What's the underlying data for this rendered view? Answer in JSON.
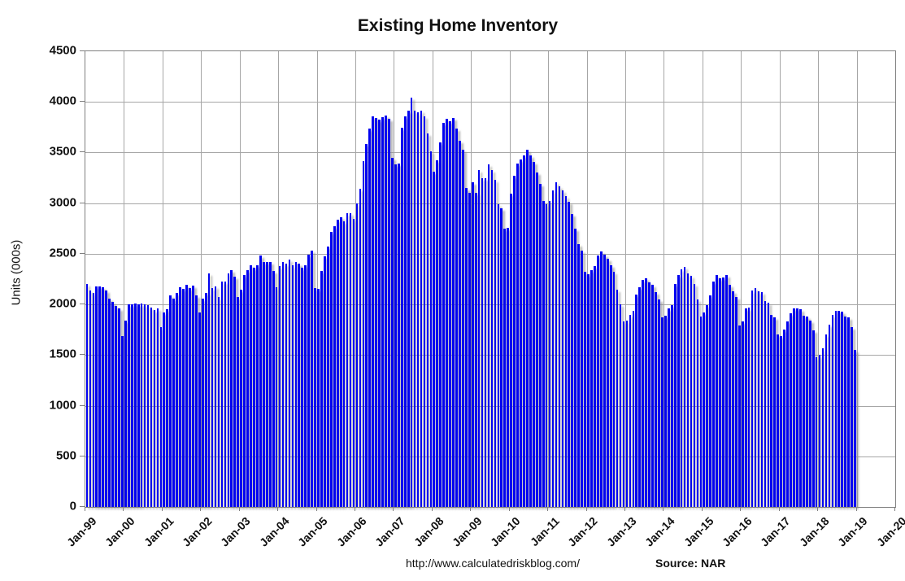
{
  "title": "Existing Home Inventory",
  "y_axis": {
    "label": "Units (000s)",
    "ticks": [
      0,
      500,
      1000,
      1500,
      2000,
      2500,
      3000,
      3500,
      4000,
      4500
    ]
  },
  "x_axis": {
    "tick_labels": [
      "Jan-99",
      "Jan-00",
      "Jan-01",
      "Jan-02",
      "Jan-03",
      "Jan-04",
      "Jan-05",
      "Jan-06",
      "Jan-07",
      "Jan-08",
      "Jan-09",
      "Jan-10",
      "Jan-11",
      "Jan-12",
      "Jan-13",
      "Jan-14",
      "Jan-15",
      "Jan-16",
      "Jan-17",
      "Jan-18",
      "Jan-19",
      "Jan-20"
    ]
  },
  "footer": {
    "url": "http://www.calculatedriskblog.com/",
    "source": "Source: NAR"
  },
  "colors": {
    "bar": "#0202f0",
    "grid": "#a6a6a6",
    "axis": "#808080",
    "text": "#111111"
  },
  "chart_data": {
    "type": "bar",
    "title": "Existing Home Inventory",
    "xlabel": "",
    "ylabel": "Units (000s)",
    "ylim": [
      0,
      4500
    ],
    "y_tick_interval": 500,
    "grid": true,
    "legend": false,
    "frequency": "monthly",
    "x_start": "Jan-1999",
    "x_end": "Dec-2018",
    "series_name": "Existing home inventory (thousands, NSA)",
    "years": [
      {
        "year": 1999,
        "values": [
          2200,
          2140,
          2110,
          2175,
          2175,
          2170,
          2140,
          2060,
          2025,
          1985,
          1960,
          1690
        ]
      },
      {
        "year": 2000,
        "values": [
          1840,
          2000,
          2005,
          2010,
          2005,
          2010,
          2000,
          1990,
          1965,
          1945,
          1960,
          1780
        ]
      },
      {
        "year": 2001,
        "values": [
          1920,
          1955,
          2090,
          2055,
          2115,
          2170,
          2150,
          2190,
          2165,
          2185,
          2090,
          1920
        ]
      },
      {
        "year": 2002,
        "values": [
          2060,
          2115,
          2310,
          2165,
          2180,
          2075,
          2230,
          2225,
          2305,
          2335,
          2275,
          2075
        ]
      },
      {
        "year": 2003,
        "values": [
          2145,
          2290,
          2335,
          2385,
          2360,
          2385,
          2480,
          2415,
          2420,
          2420,
          2330,
          2170
        ]
      },
      {
        "year": 2004,
        "values": [
          2375,
          2420,
          2400,
          2440,
          2385,
          2415,
          2400,
          2360,
          2385,
          2495,
          2530,
          2160
        ]
      },
      {
        "year": 2005,
        "values": [
          2155,
          2330,
          2475,
          2570,
          2715,
          2770,
          2835,
          2860,
          2820,
          2900,
          2905,
          2845
        ]
      },
      {
        "year": 2006,
        "values": [
          2995,
          3140,
          3415,
          3585,
          3735,
          3860,
          3845,
          3825,
          3850,
          3865,
          3835,
          3450
        ]
      },
      {
        "year": 2007,
        "values": [
          3380,
          3390,
          3745,
          3855,
          3910,
          4040,
          3910,
          3900,
          3915,
          3860,
          3690,
          3510
        ]
      },
      {
        "year": 2008,
        "values": [
          3310,
          3420,
          3600,
          3790,
          3830,
          3810,
          3840,
          3740,
          3615,
          3525,
          3150,
          3100
        ]
      },
      {
        "year": 2009,
        "values": [
          3210,
          3105,
          3325,
          3250,
          3245,
          3385,
          3325,
          3230,
          2990,
          2950,
          2750,
          2755
        ]
      },
      {
        "year": 2010,
        "values": [
          3095,
          3270,
          3395,
          3430,
          3470,
          3530,
          3470,
          3410,
          3305,
          3190,
          3020,
          2990
        ]
      },
      {
        "year": 2011,
        "values": [
          3020,
          3130,
          3205,
          3165,
          3130,
          3070,
          3010,
          2895,
          2750,
          2595,
          2530,
          2320
        ]
      },
      {
        "year": 2012,
        "values": [
          2295,
          2340,
          2375,
          2480,
          2520,
          2495,
          2455,
          2385,
          2320,
          2145,
          2000,
          1835
        ]
      },
      {
        "year": 2013,
        "values": [
          1840,
          1900,
          1940,
          2100,
          2170,
          2240,
          2260,
          2220,
          2190,
          2120,
          2050,
          1870
        ]
      },
      {
        "year": 2014,
        "values": [
          1890,
          1960,
          1990,
          2200,
          2290,
          2350,
          2370,
          2310,
          2280,
          2200,
          2050,
          1880
        ]
      },
      {
        "year": 2015,
        "values": [
          1920,
          1990,
          2090,
          2230,
          2290,
          2260,
          2270,
          2290,
          2190,
          2130,
          2070,
          1790
        ]
      },
      {
        "year": 2016,
        "values": [
          1830,
          1960,
          1970,
          2140,
          2160,
          2130,
          2120,
          2030,
          2020,
          1900,
          1870,
          1700
        ]
      },
      {
        "year": 2017,
        "values": [
          1690,
          1755,
          1830,
          1910,
          1960,
          1960,
          1950,
          1890,
          1880,
          1840,
          1740,
          1480
        ]
      },
      {
        "year": 2018,
        "values": [
          1500,
          1570,
          1700,
          1800,
          1900,
          1940,
          1940,
          1930,
          1880,
          1870,
          1780,
          1550
        ]
      }
    ]
  }
}
